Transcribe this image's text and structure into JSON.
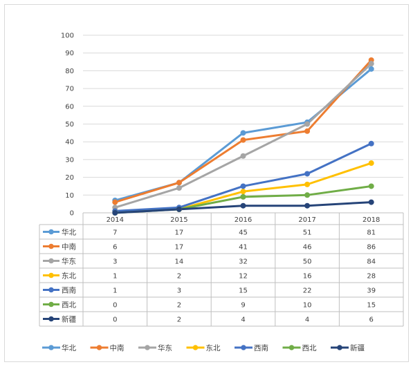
{
  "chart_data": {
    "type": "line",
    "title": "",
    "xlabel": "",
    "ylabel": "",
    "ylim": [
      0,
      100
    ],
    "ytick_step": 10,
    "grid": true,
    "legend_position": "bottom",
    "data_table": true,
    "categories": [
      "2014",
      "2015",
      "2016",
      "2017",
      "2018"
    ],
    "series": [
      {
        "name": "华北",
        "color": "#5b9bd5",
        "values": [
          7,
          17,
          45,
          51,
          81
        ]
      },
      {
        "name": "中南",
        "color": "#ed7d31",
        "values": [
          6,
          17,
          41,
          46,
          86
        ]
      },
      {
        "name": "华东",
        "color": "#a5a5a5",
        "values": [
          3,
          14,
          32,
          50,
          84
        ]
      },
      {
        "name": "东北",
        "color": "#ffc000",
        "values": [
          1,
          2,
          12,
          16,
          28
        ]
      },
      {
        "name": "西南",
        "color": "#4472c4",
        "values": [
          1,
          3,
          15,
          22,
          39
        ]
      },
      {
        "name": "西北",
        "color": "#70ad47",
        "values": [
          0,
          2,
          9,
          10,
          15
        ]
      },
      {
        "name": "新疆",
        "color": "#264478",
        "values": [
          0,
          2,
          4,
          4,
          6
        ]
      }
    ]
  }
}
